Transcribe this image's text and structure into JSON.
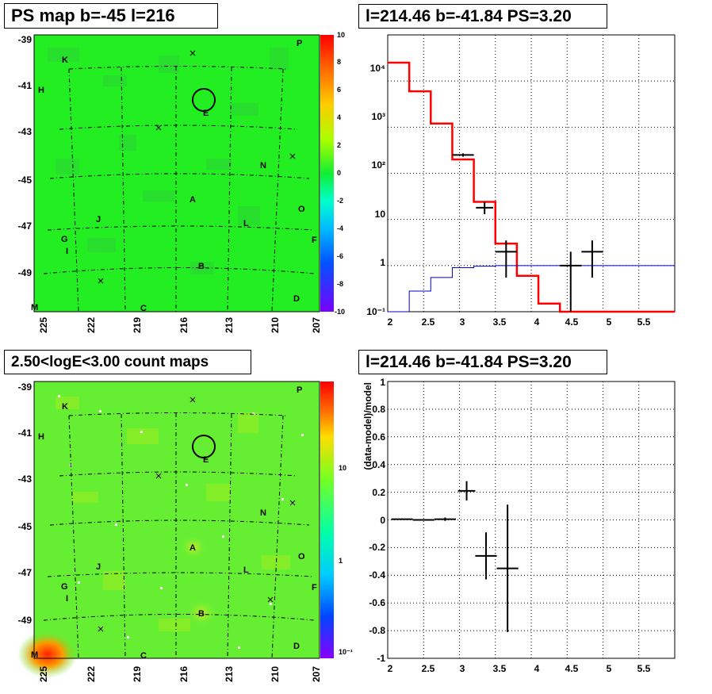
{
  "titles": {
    "ps_map": "PS map b=-45 l=216",
    "spectrum": "l=214.46 b=-41.84 PS=3.20",
    "count_map": "2.50<logE<3.00 count maps",
    "residual": "l=214.46 b=-41.84 PS=3.20"
  },
  "maps": {
    "b_ticks": [
      "-39",
      "-41",
      "-43",
      "-45",
      "-47",
      "-49"
    ],
    "l_ticks": [
      "225",
      "222",
      "219",
      "216",
      "213",
      "210",
      "207"
    ],
    "source_labels": [
      "P",
      "K",
      "H",
      "E",
      "N",
      "A",
      "J",
      "O",
      "L",
      "G",
      "I",
      "F",
      "B",
      "M",
      "C",
      "D"
    ],
    "ps_colorbar_ticks": [
      "10",
      "8",
      "6",
      "4",
      "2",
      "0",
      "-2",
      "-4",
      "-6",
      "-8",
      "-10"
    ],
    "count_colorbar_ticks": [
      "10",
      "1",
      "10⁻¹"
    ],
    "colors": {
      "ps_background": "#22ee22",
      "count_background": "#66ee33",
      "hotspot": "#ff2200"
    }
  },
  "chart_data": [
    {
      "type": "line",
      "panel": "spectrum",
      "y_scale": "log",
      "xlim": [
        2,
        6
      ],
      "ylim": [
        0.1,
        100000
      ],
      "x_ticks": [
        "2",
        "2.5",
        "3",
        "3.5",
        "4",
        "4.5",
        "5",
        "5.5"
      ],
      "y_ticks": [
        "10⁻¹",
        "1",
        "10",
        "10²",
        "10³",
        "10⁴"
      ],
      "grid": true,
      "series": [
        {
          "color": "#ff0000",
          "style": "step",
          "bin_edges": [
            2.0,
            2.3,
            2.6,
            2.9,
            3.2,
            3.5,
            3.8,
            4.1,
            4.4,
            6.0
          ],
          "values": [
            25000,
            6000,
            1200,
            200,
            24,
            3,
            0.6,
            0.15,
            0.1
          ]
        },
        {
          "color": "#0000cc",
          "style": "step",
          "bin_edges": [
            2.0,
            2.3,
            2.6,
            2.9,
            3.2,
            3.5,
            6.0
          ],
          "values": [
            0.1,
            0.28,
            0.55,
            0.9,
            0.97,
            1.0
          ]
        },
        {
          "color": "#000000",
          "style": "errorbar",
          "points": [
            {
              "x": 3.05,
              "y": 250,
              "xerr": 0.15,
              "ylo": 230,
              "yhi": 270
            },
            {
              "x": 3.35,
              "y": 18,
              "xerr": 0.12,
              "ylo": 13,
              "yhi": 24
            },
            {
              "x": 3.65,
              "y": 2,
              "xerr": 0.15,
              "ylo": 0.55,
              "yhi": 3.5
            },
            {
              "x": 4.55,
              "y": 1.0,
              "xerr": 0.15,
              "ylo": 0.1,
              "yhi": 2.0
            },
            {
              "x": 4.85,
              "y": 2,
              "xerr": 0.15,
              "ylo": 0.55,
              "yhi": 3.5
            }
          ]
        }
      ]
    },
    {
      "type": "scatter",
      "panel": "residual",
      "xlim": [
        2,
        6
      ],
      "ylim": [
        -1,
        1
      ],
      "ylabel": "(data-model)/model",
      "x_ticks": [
        "2",
        "2.5",
        "3",
        "3.5",
        "4",
        "4.5",
        "5",
        "5.5"
      ],
      "y_ticks": [
        "-1",
        "-0.8",
        "-0.6",
        "-0.4",
        "-0.2",
        "0",
        "0.2",
        "0.4",
        "0.6",
        "0.8",
        "1"
      ],
      "grid": true,
      "points": [
        {
          "x": 2.2,
          "y": 0.005,
          "xerr": 0.15,
          "yerr": 0.005
        },
        {
          "x": 2.5,
          "y": 0.0,
          "xerr": 0.15,
          "yerr": 0.005
        },
        {
          "x": 2.8,
          "y": 0.005,
          "xerr": 0.15,
          "yerr": 0.012
        },
        {
          "x": 3.1,
          "y": 0.21,
          "xerr": 0.12,
          "yerr": 0.07
        },
        {
          "x": 3.37,
          "y": -0.26,
          "xerr": 0.15,
          "yerr": 0.17
        },
        {
          "x": 3.67,
          "y": -0.35,
          "xerr": 0.15,
          "yerr": 0.46
        }
      ]
    }
  ]
}
